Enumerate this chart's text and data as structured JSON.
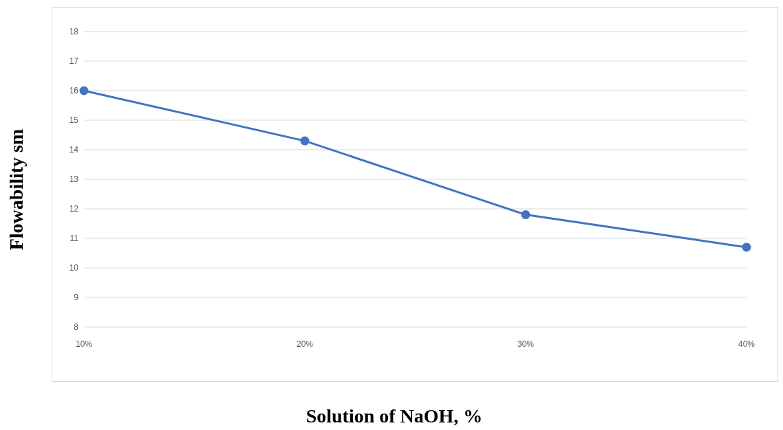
{
  "chart_data": {
    "type": "line",
    "xlabel": "Solution of NaOH, %",
    "ylabel": "Flowability sm",
    "categories": [
      "10%",
      "20%",
      "30%",
      "40%"
    ],
    "series": [
      {
        "color": "#4472c4",
        "values": [
          16,
          14.3,
          11.8,
          10.7
        ]
      }
    ],
    "ylim": [
      8,
      18
    ],
    "yticks": [
      8,
      9,
      10,
      11,
      12,
      13,
      14,
      15,
      16,
      17,
      18
    ],
    "grid": "y",
    "marker": "circle",
    "line_style": "solid",
    "legend": false
  }
}
